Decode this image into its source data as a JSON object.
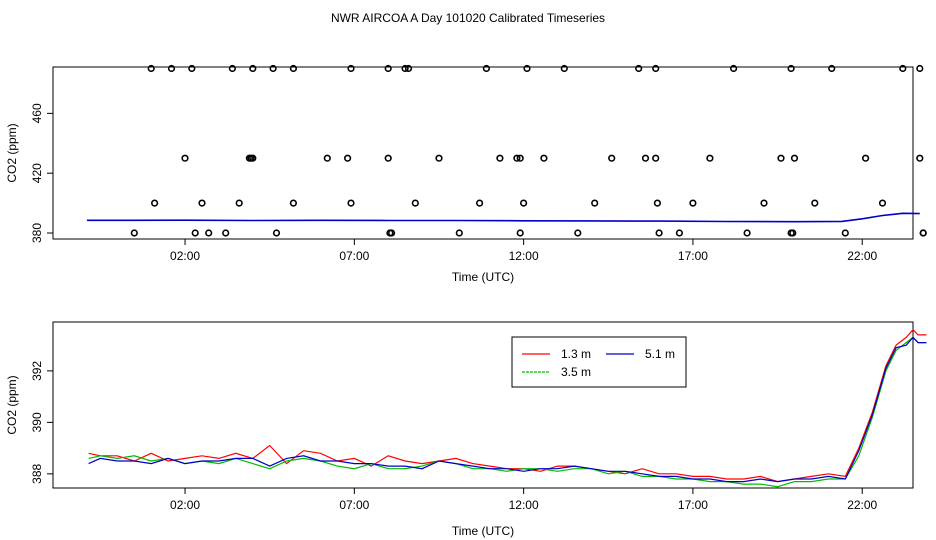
{
  "title": "NWR AIRCOA A  Day 101020  Calibrated Timeseries",
  "colors": {
    "h13": "#ff0000",
    "h35": "#00bb00",
    "h51": "#0000cc",
    "markers": "#000000",
    "flagged": "#cc0066"
  },
  "chart_data": [
    {
      "type": "scatter",
      "panel": "top",
      "xlabel": "Time (UTC)",
      "ylabel": "CO2 (ppm)",
      "x_unit": "hours UTC",
      "xlim": [
        -1.9,
        23.5
      ],
      "ylim": [
        376,
        491
      ],
      "x_ticks": [
        2,
        7,
        12,
        17,
        22
      ],
      "x_tick_labels": [
        "02:00",
        "07:00",
        "12:00",
        "17:00",
        "22:00"
      ],
      "y_ticks": [
        380,
        420,
        460
      ],
      "y_tick_labels": [
        "380",
        "420",
        "460"
      ],
      "grid": false,
      "markers": {
        "description": "open circles (reference/calibration cycle values)",
        "x": [
          1.0,
          1.6,
          2.2,
          3.4,
          4.0,
          4.6,
          5.2,
          6.9,
          8.0,
          8.5,
          8.6,
          10.9,
          12.1,
          13.2,
          15.4,
          15.9,
          18.2,
          19.9,
          21.1,
          23.2,
          23.7,
          0.5,
          1.1,
          2.0,
          2.3,
          2.5,
          2.7,
          3.2,
          3.6,
          3.9,
          3.95,
          4.0,
          4.7,
          5.2,
          6.2,
          6.8,
          6.9,
          8.0,
          8.05,
          8.1,
          8.8,
          9.5,
          10.1,
          10.7,
          11.3,
          11.8,
          11.9,
          11.9,
          12.0,
          12.6,
          13.6,
          14.1,
          14.6,
          15.6,
          15.9,
          15.95,
          16.0,
          16.6,
          17.0,
          17.5,
          18.6,
          19.1,
          19.6,
          19.9,
          19.95,
          20.0,
          20.6,
          21.5,
          22.1,
          22.6,
          23.7,
          23.8,
          23.8
        ],
        "y": [
          490,
          490,
          490,
          490,
          490,
          490,
          490,
          490,
          490,
          490,
          490,
          490,
          490,
          490,
          490,
          490,
          490,
          490,
          490,
          490,
          490,
          380,
          400,
          430,
          380,
          400,
          380,
          380,
          400,
          430,
          430,
          430,
          380,
          400,
          430,
          430,
          400,
          430,
          380,
          380,
          400,
          430,
          380,
          400,
          430,
          430,
          430,
          380,
          400,
          430,
          380,
          400,
          430,
          430,
          430,
          400,
          380,
          380,
          400,
          430,
          380,
          400,
          430,
          380,
          380,
          430,
          400,
          380,
          430,
          400,
          430,
          380,
          380
        ]
      },
      "series": [
        {
          "label_ref": "h51",
          "x": [
            -0.9,
            0,
            2,
            4,
            6,
            8,
            10,
            12,
            14,
            16,
            18,
            20,
            21.4,
            22,
            22.6,
            23.2,
            23.7
          ],
          "y": [
            388.5,
            388.5,
            388.6,
            388.4,
            388.5,
            388.4,
            388.4,
            388.2,
            388.1,
            388.0,
            387.7,
            387.6,
            387.8,
            389.5,
            391.7,
            393.2,
            393.0
          ]
        }
      ]
    },
    {
      "type": "line",
      "panel": "bottom",
      "xlabel": "Time (UTC)",
      "ylabel": "CO2 (ppm)",
      "x_unit": "hours UTC",
      "xlim": [
        -1.9,
        23.5
      ],
      "ylim": [
        387.45,
        393.9
      ],
      "x_ticks": [
        2,
        7,
        12,
        17,
        22
      ],
      "x_tick_labels": [
        "02:00",
        "07:00",
        "12:00",
        "17:00",
        "22:00"
      ],
      "y_ticks": [
        388,
        390,
        392
      ],
      "y_tick_labels": [
        "388",
        "390",
        "392"
      ],
      "grid": false,
      "legend": {
        "placement": "top-right",
        "entries": [
          {
            "key": "h13",
            "label": "1.3 m"
          },
          {
            "key": "h51",
            "label": "5.1 m"
          },
          {
            "key": "h35",
            "label": "3.5 m"
          }
        ]
      },
      "series": [
        {
          "name": "1.3 m",
          "key": "h13",
          "x": [
            -0.85,
            -0.5,
            0,
            0.5,
            1.0,
            1.5,
            2.0,
            2.5,
            3.0,
            3.5,
            4.0,
            4.5,
            5.0,
            5.5,
            6.0,
            6.5,
            7.0,
            7.5,
            8.0,
            8.5,
            9.0,
            9.5,
            10.0,
            10.5,
            11.0,
            11.5,
            12.0,
            12.5,
            13.0,
            13.5,
            14.0,
            14.5,
            15.0,
            15.5,
            16.0,
            16.5,
            17.0,
            17.5,
            18.0,
            18.5,
            19.0,
            19.5,
            20.0,
            20.5,
            21.0,
            21.5,
            21.9,
            22.3,
            22.7,
            23.0,
            23.3,
            23.5,
            23.65,
            23.9
          ],
          "y": [
            388.8,
            388.7,
            388.7,
            388.5,
            388.8,
            388.5,
            388.6,
            388.7,
            388.6,
            388.8,
            388.6,
            389.1,
            388.4,
            388.9,
            388.8,
            388.5,
            388.6,
            388.3,
            388.7,
            388.5,
            388.4,
            388.5,
            388.6,
            388.4,
            388.3,
            388.2,
            388.2,
            388.1,
            388.3,
            388.3,
            388.2,
            388.1,
            388.0,
            388.2,
            388.0,
            388.0,
            387.9,
            387.9,
            387.8,
            387.8,
            387.9,
            387.7,
            387.8,
            387.9,
            388.0,
            387.9,
            389.0,
            390.4,
            392.2,
            393.0,
            393.3,
            393.6,
            393.4,
            393.4
          ]
        },
        {
          "name": "3.5 m",
          "key": "h35",
          "x": [
            -0.85,
            -0.5,
            0,
            0.5,
            1.0,
            1.5,
            2.0,
            2.5,
            3.0,
            3.5,
            4.0,
            4.5,
            5.0,
            5.5,
            6.0,
            6.5,
            7.0,
            7.5,
            8.0,
            8.5,
            9.0,
            9.5,
            10.0,
            10.5,
            11.0,
            11.5,
            12.0,
            12.5,
            13.0,
            13.5,
            14.0,
            14.5,
            15.0,
            15.5,
            16.0,
            16.5,
            17.0,
            17.5,
            18.0,
            18.5,
            19.0,
            19.5,
            20.0,
            20.5,
            21.0,
            21.5,
            21.9,
            22.3,
            22.7,
            23.0,
            23.3,
            23.5,
            23.65,
            23.9
          ],
          "y": [
            388.6,
            388.7,
            388.6,
            388.7,
            388.5,
            388.6,
            388.4,
            388.5,
            388.4,
            388.6,
            388.4,
            388.2,
            388.5,
            388.6,
            388.5,
            388.3,
            388.2,
            388.4,
            388.2,
            388.2,
            388.3,
            388.5,
            388.4,
            388.2,
            388.2,
            388.1,
            388.2,
            388.2,
            388.1,
            388.2,
            388.2,
            388.0,
            388.1,
            387.9,
            387.9,
            387.8,
            387.8,
            387.7,
            387.7,
            387.6,
            387.6,
            387.5,
            387.7,
            387.7,
            387.8,
            387.8,
            388.7,
            390.2,
            392.0,
            392.8,
            393.1,
            393.3,
            393.1,
            393.1
          ]
        },
        {
          "name": "5.1 m",
          "key": "h51",
          "x": [
            -0.85,
            -0.5,
            0,
            0.5,
            1.0,
            1.5,
            2.0,
            2.5,
            3.0,
            3.5,
            4.0,
            4.5,
            5.0,
            5.5,
            6.0,
            6.5,
            7.0,
            7.5,
            8.0,
            8.5,
            9.0,
            9.5,
            10.0,
            10.5,
            11.0,
            11.5,
            12.0,
            12.5,
            13.0,
            13.5,
            14.0,
            14.5,
            15.0,
            15.5,
            16.0,
            16.5,
            17.0,
            17.5,
            18.0,
            18.5,
            19.0,
            19.5,
            20.0,
            20.5,
            21.0,
            21.5,
            21.9,
            22.3,
            22.7,
            23.0,
            23.3,
            23.5,
            23.65,
            23.9
          ],
          "y": [
            388.4,
            388.6,
            388.5,
            388.5,
            388.4,
            388.6,
            388.4,
            388.5,
            388.5,
            388.6,
            388.6,
            388.3,
            388.6,
            388.7,
            388.5,
            388.5,
            388.4,
            388.4,
            388.3,
            388.3,
            388.2,
            388.5,
            388.4,
            388.3,
            388.2,
            388.2,
            388.1,
            388.2,
            388.2,
            388.3,
            388.2,
            388.1,
            388.1,
            388.0,
            387.9,
            387.9,
            387.8,
            387.8,
            387.7,
            387.7,
            387.8,
            387.7,
            387.8,
            387.8,
            387.9,
            387.8,
            388.9,
            390.3,
            392.1,
            392.9,
            393.0,
            393.3,
            393.1,
            393.1
          ]
        }
      ]
    }
  ]
}
